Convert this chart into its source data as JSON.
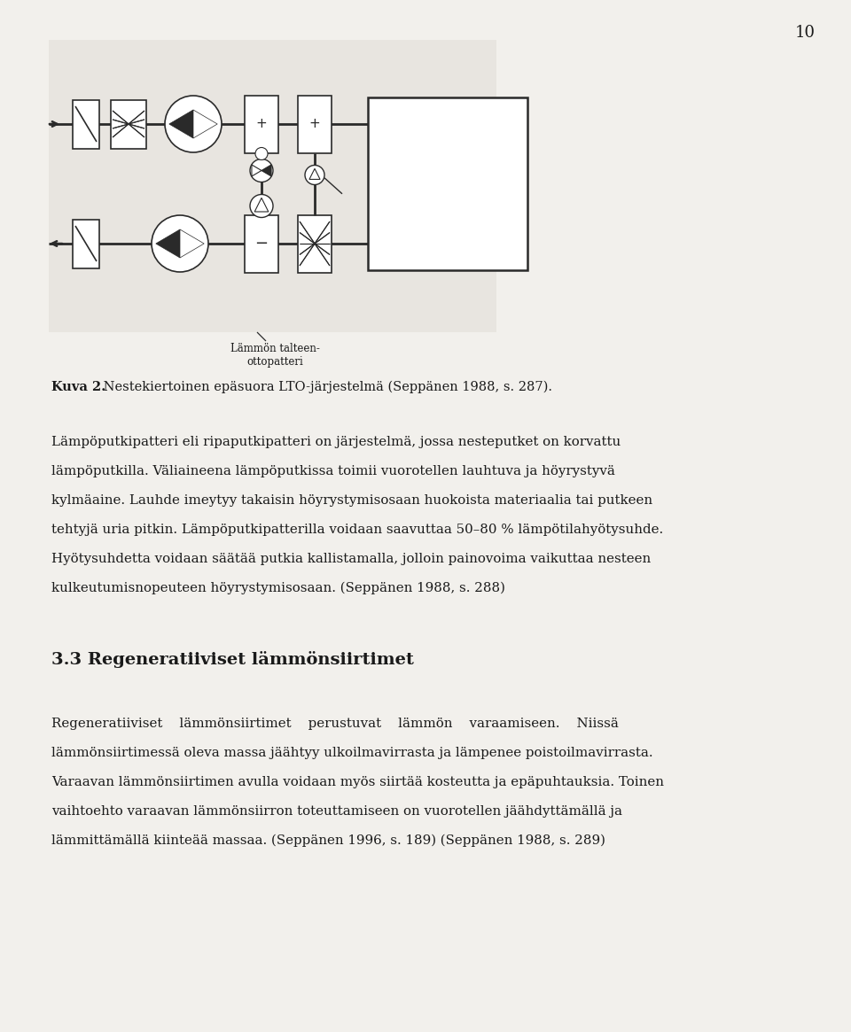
{
  "page_number": "10",
  "bg_color": "#f2f0ec",
  "text_color": "#1a1a1a",
  "line_color": "#2a2a2a",
  "diagram_bg": "#e8e5e0",
  "figure_caption_bold": "Kuva 2.",
  "figure_caption_rest": " Nestekiertoinen epäsuora LTO-järjestelmä (Seppänen 1988, s. 287).",
  "diagram_label_line1": "Lämmön talteen-",
  "diagram_label_line2": "ottopatteri",
  "section_heading": "3.3 Regeneratiiviset lämmönsiirtimet",
  "p1_lines": [
    "Lämpöputkipatteri eli ripaputkipatteri on järjestelmä, jossa nesteputket on korvattu",
    "lämpöputkilla. Väliaineena lämpöputkissa toimii vuorotellen lauhtuva ja höyrystyvä",
    "kylmäaine. Lauhde imeytyy takaisin höyrystymisosaan huokoista materiaalia tai putkeen",
    "tehtyjä uria pitkin. Lämpöputkipatterilla voidaan saavuttaa 50–80 % lämpötilahyötysuhde.",
    "Hyötysuhdetta voidaan säätää putkia kallistamalla, jolloin painovoima vaikuttaa nesteen",
    "kulkeutumisnopeuteen höyrystymisosaan. (Seppänen 1988, s. 288)"
  ],
  "p2_line1": "Regeneratiiviset    lämmönsiirtimet    perustuvat    lämmön    varaamiseen.    Niissä",
  "p2_lines": [
    "lämmönsiirtimessä oleva massa jäähtyy ulkoilmavirrasta ja lämpenee poistoilmavirrasta.",
    "Varaavan lämmönsiirtimen avulla voidaan myös siirtää kosteutta ja epäpuhtauksia. Toinen",
    "vaihtoehto varaavan lämmönsiirron toteuttamiseen on vuorotellen jäähdyttämällä ja",
    "lämmittämällä kiinteää massaa. (Seppänen 1996, s. 189) (Seppänen 1988, s. 289)"
  ]
}
